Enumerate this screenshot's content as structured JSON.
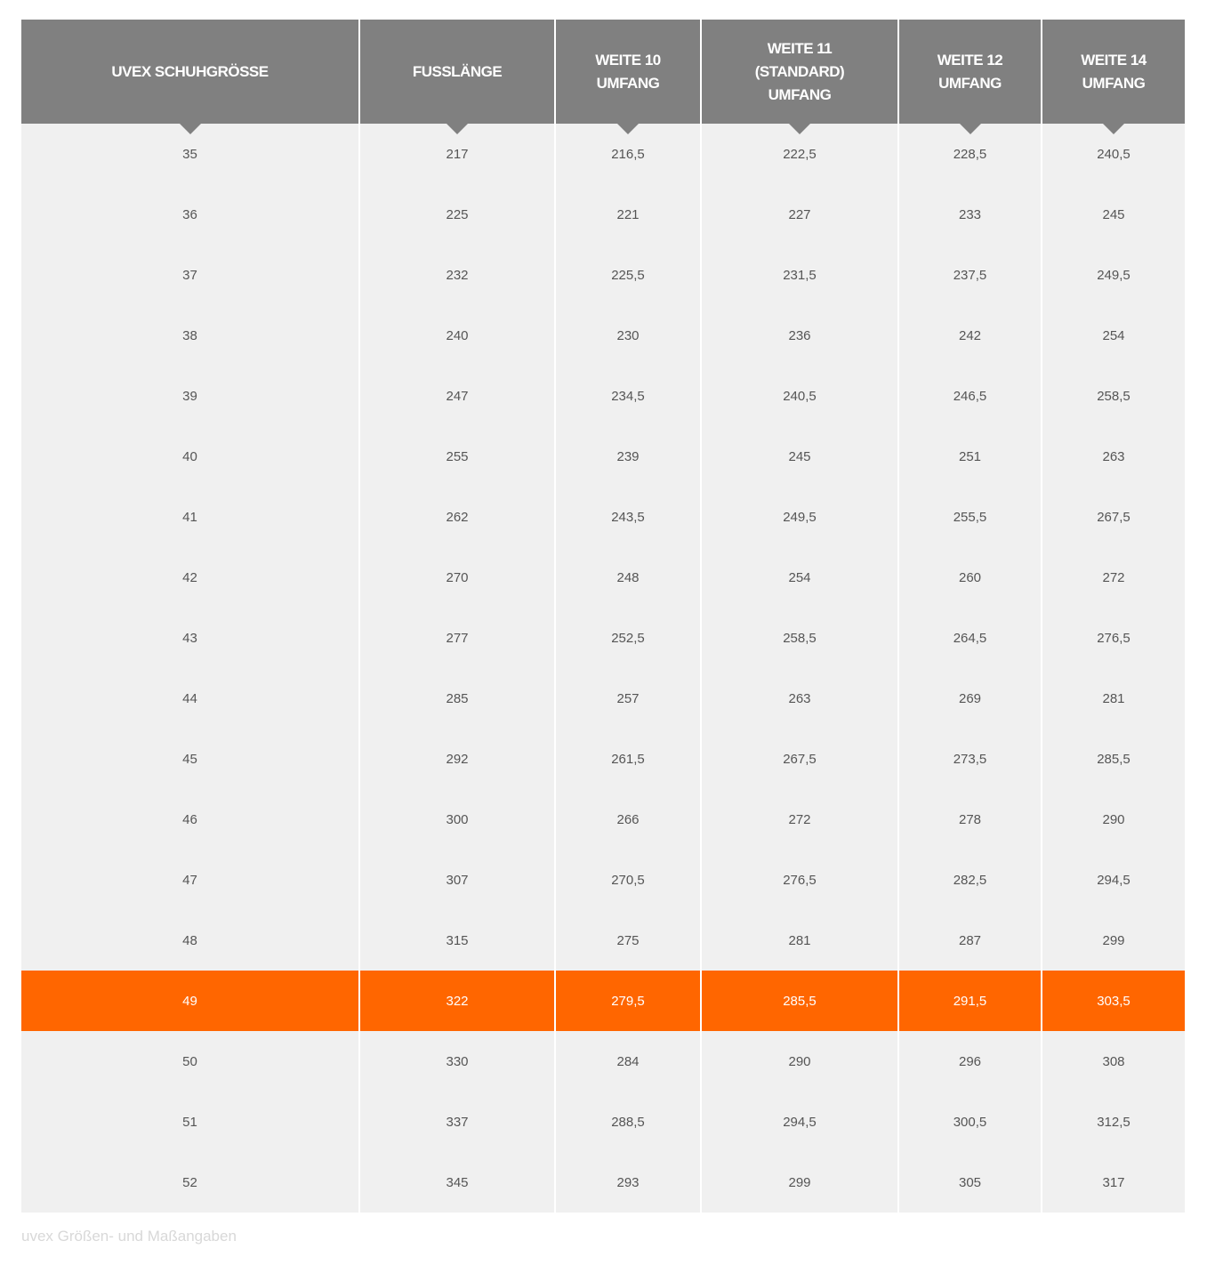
{
  "table": {
    "headers": [
      [
        "UVEX SCHUHGRÖSSE"
      ],
      [
        "FUSSLÄNGE"
      ],
      [
        "WEITE 10",
        "UMFANG"
      ],
      [
        "WEITE 11",
        "(STANDARD)",
        "UMFANG"
      ],
      [
        "WEITE 12",
        "UMFANG"
      ],
      [
        "WEITE 14",
        "UMFANG"
      ]
    ],
    "highlighted_row": "49",
    "highlight_color": "#ff6600",
    "header_color": "#808080",
    "rows": [
      [
        "35",
        "217",
        "216,5",
        "222,5",
        "228,5",
        "240,5"
      ],
      [
        "36",
        "225",
        "221",
        "227",
        "233",
        "245"
      ],
      [
        "37",
        "232",
        "225,5",
        "231,5",
        "237,5",
        "249,5"
      ],
      [
        "38",
        "240",
        "230",
        "236",
        "242",
        "254"
      ],
      [
        "39",
        "247",
        "234,5",
        "240,5",
        "246,5",
        "258,5"
      ],
      [
        "40",
        "255",
        "239",
        "245",
        "251",
        "263"
      ],
      [
        "41",
        "262",
        "243,5",
        "249,5",
        "255,5",
        "267,5"
      ],
      [
        "42",
        "270",
        "248",
        "254",
        "260",
        "272"
      ],
      [
        "43",
        "277",
        "252,5",
        "258,5",
        "264,5",
        "276,5"
      ],
      [
        "44",
        "285",
        "257",
        "263",
        "269",
        "281"
      ],
      [
        "45",
        "292",
        "261,5",
        "267,5",
        "273,5",
        "285,5"
      ],
      [
        "46",
        "300",
        "266",
        "272",
        "278",
        "290"
      ],
      [
        "47",
        "307",
        "270,5",
        "276,5",
        "282,5",
        "294,5"
      ],
      [
        "48",
        "315",
        "275",
        "281",
        "287",
        "299"
      ],
      [
        "49",
        "322",
        "279,5",
        "285,5",
        "291,5",
        "303,5"
      ],
      [
        "50",
        "330",
        "284",
        "290",
        "296",
        "308"
      ],
      [
        "51",
        "337",
        "288,5",
        "294,5",
        "300,5",
        "312,5"
      ],
      [
        "52",
        "345",
        "293",
        "299",
        "305",
        "317"
      ]
    ]
  },
  "caption": "uvex Größen- und Maßangaben"
}
